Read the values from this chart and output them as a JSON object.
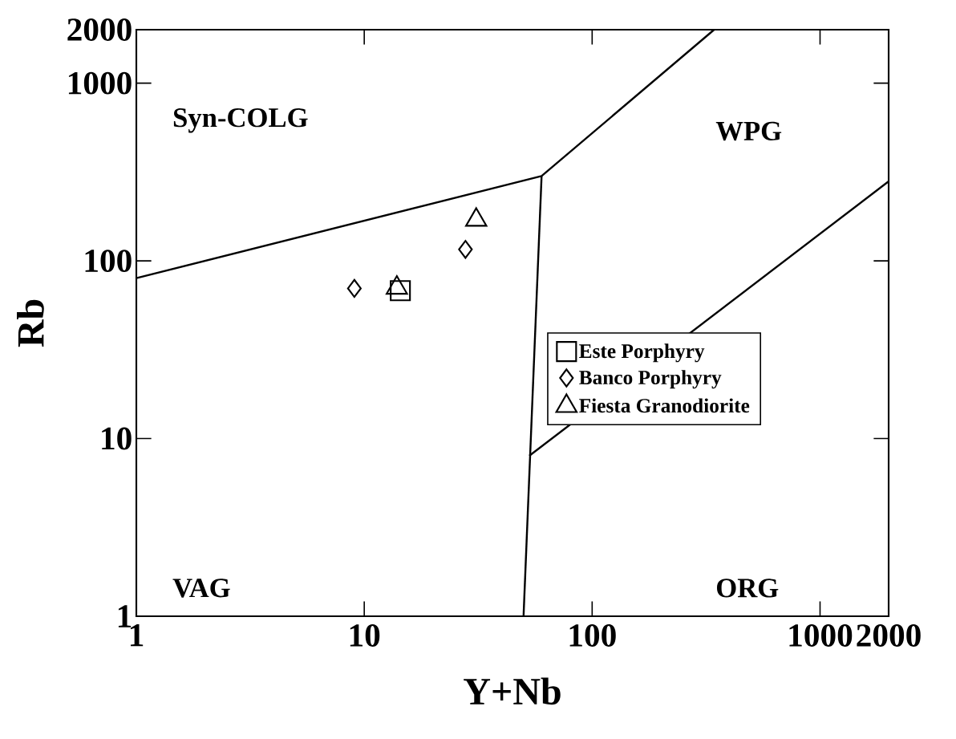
{
  "chart_data": {
    "type": "scatter",
    "log": "xy",
    "xlabel": "Y+Nb",
    "ylabel": "Rb",
    "xlim": [
      1,
      2000
    ],
    "ylim": [
      1,
      2000
    ],
    "xticks": [
      1,
      10,
      100,
      1000,
      2000
    ],
    "yticks": [
      1,
      10,
      100,
      1000,
      2000
    ],
    "grid": false,
    "legend": "right",
    "series": [
      {
        "name": "Este Porphyry",
        "color": "#000000",
        "marker": "square",
        "x": [
          14.4
        ],
        "values": [
          68
        ]
      },
      {
        "name": "Banco Porphyry",
        "color": "#000000",
        "marker": "diamond",
        "x": [
          9.05,
          27.8
        ],
        "values": [
          70,
          116
        ]
      },
      {
        "name": "Fiesta Granodiorite",
        "color": "#000000",
        "marker": "triangle",
        "x": [
          13.9,
          31
        ],
        "values": [
          70.5,
          170
        ]
      },
      {
        "type": "line",
        "color": "#000000",
        "marker": "none",
        "x": [
          1,
          60,
          343
        ],
        "values": [
          80,
          300,
          2000
        ]
      },
      {
        "type": "line",
        "color": "#000000",
        "marker": "none",
        "x": [
          60,
          50
        ],
        "values": [
          300,
          1
        ]
      },
      {
        "type": "line",
        "color": "#000000",
        "marker": "none",
        "x": [
          53,
          2000
        ],
        "values": [
          8,
          280
        ]
      }
    ],
    "annotations": [
      "Syn-COLG",
      "WPG",
      "VAG",
      "ORG"
    ]
  }
}
